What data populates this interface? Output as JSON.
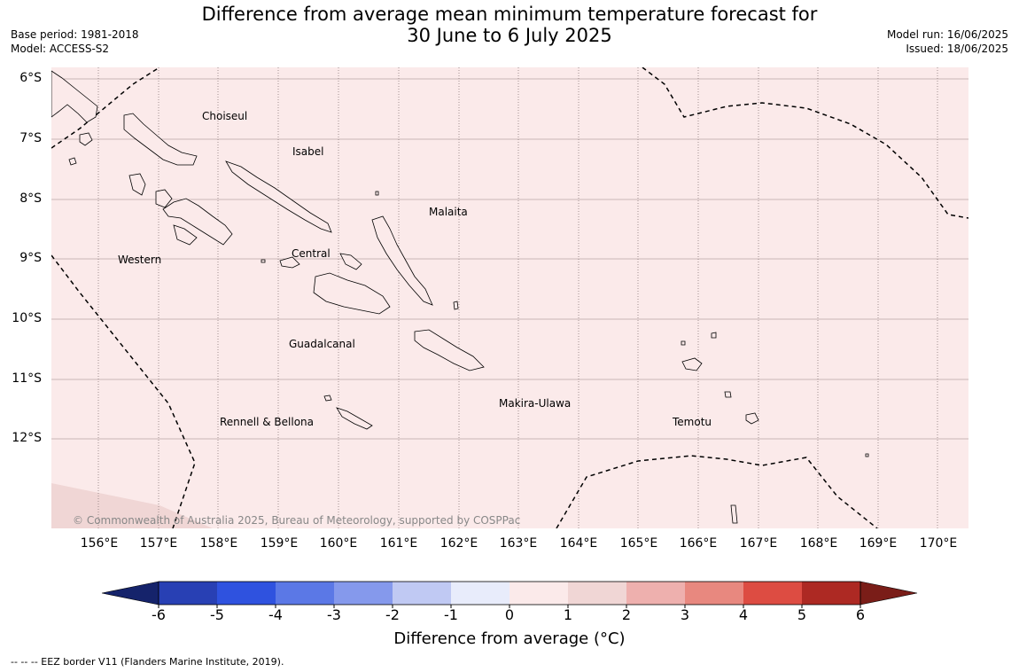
{
  "title": {
    "line1": "Difference from average mean minimum temperature forecast for",
    "line2": "30 June to 6 July 2025"
  },
  "meta_left": {
    "base_period": "Base period: 1981-2018",
    "model": "Model: ACCESS-S2"
  },
  "meta_right": {
    "model_run": "Model run: 16/06/2025",
    "issued": "Issued: 18/06/2025"
  },
  "latitude_labels": [
    "6°S",
    "7°S",
    "8°S",
    "9°S",
    "10°S",
    "11°S",
    "12°S"
  ],
  "longitude_labels": [
    "156°E",
    "157°E",
    "158°E",
    "159°E",
    "160°E",
    "161°E",
    "162°E",
    "163°E",
    "164°E",
    "165°E",
    "166°E",
    "167°E",
    "168°E",
    "169°E",
    "170°E"
  ],
  "provinces": {
    "choiseul": "Choiseul",
    "isabel": "Isabel",
    "malaita": "Malaita",
    "western": "Western",
    "central": "Central",
    "guadalcanal": "Guadalcanal",
    "makira": "Makira-Ulawa",
    "rennell": "Rennell & Bellona",
    "temotu": "Temotu"
  },
  "copyright": "© Commonwealth of Australia 2025, Bureau of Meteorology, supported by COSPPac",
  "colorbar": {
    "title": "Difference from average (°C)",
    "ticks": [
      "-6",
      "-5",
      "-4",
      "-3",
      "-2",
      "-1",
      "0",
      "1",
      "2",
      "3",
      "4",
      "5",
      "6"
    ],
    "colors": [
      "#15236b",
      "#2840b4",
      "#2f52df",
      "#5b78e6",
      "#8599ec",
      "#c0c9f3",
      "#e8ecfb",
      "#fbeaea",
      "#f0d6d5",
      "#eeb0ae",
      "#e8887f",
      "#dd4c42",
      "#ad2923",
      "#7a1d18"
    ]
  },
  "map": {
    "ocean_anomaly_color": "#fbeaea",
    "lower_left_anomaly_color": "#f0d6d5"
  },
  "footer": "--  --  -- EEZ border V11 (Flanders Marine Institute, 2019)."
}
